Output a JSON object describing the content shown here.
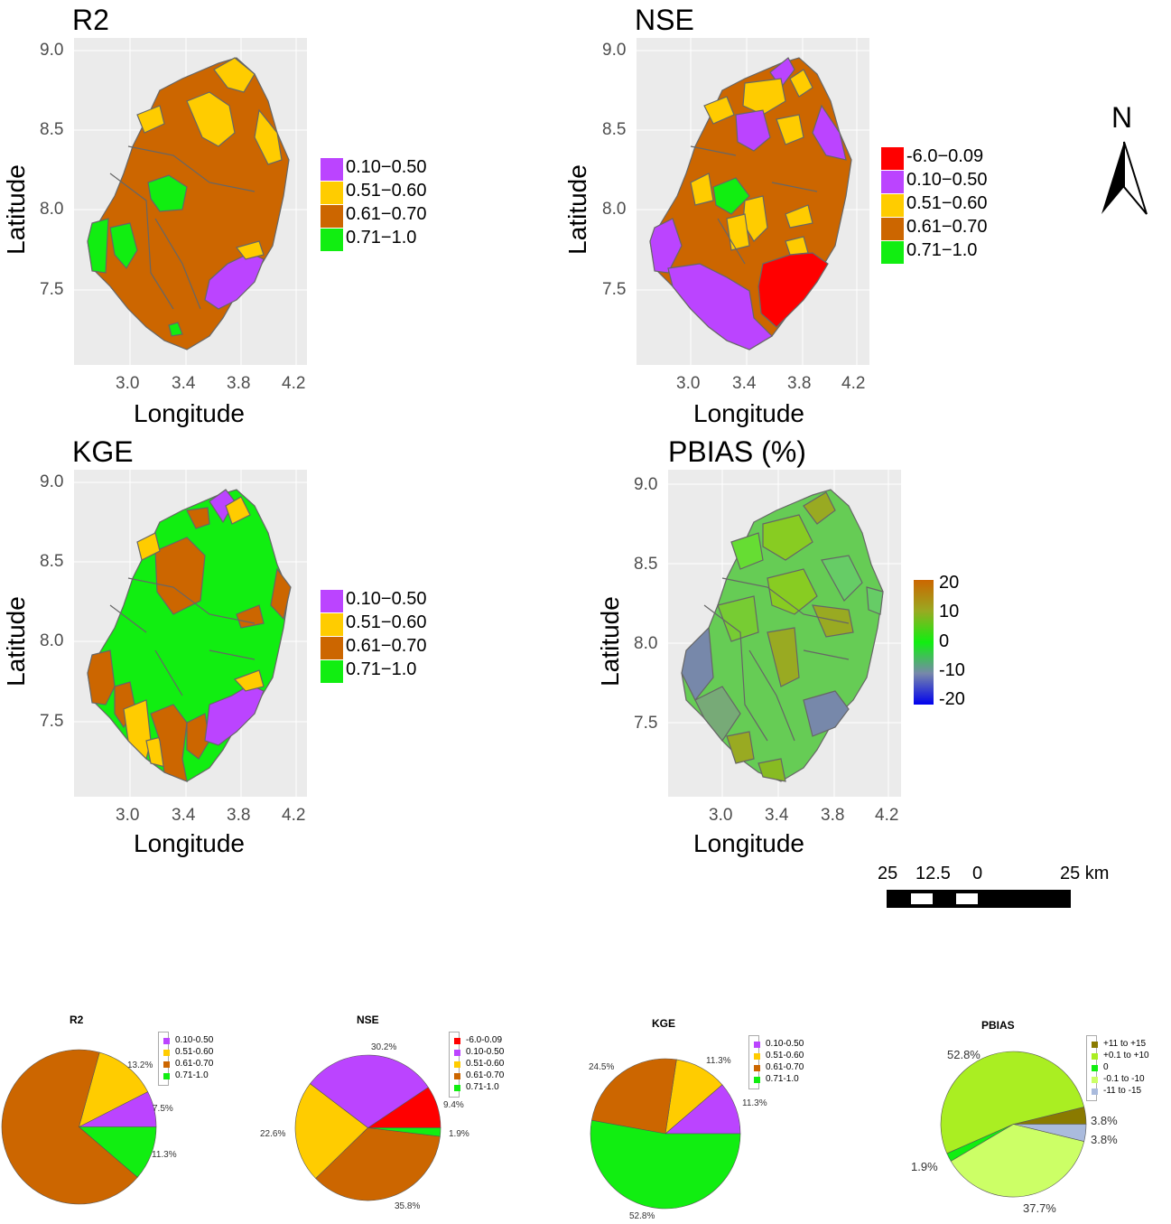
{
  "maps": [
    {
      "title": "R2",
      "ylabel": "Latitude",
      "xlabel": "Longitude",
      "yticks": [
        "9.0",
        "8.5",
        "8.0",
        "7.5"
      ],
      "xticks": [
        "3.0",
        "3.4",
        "3.8",
        "4.2"
      ],
      "legend": [
        {
          "label": "0.10−0.50",
          "color": "#BB44FF"
        },
        {
          "label": "0.51−0.60",
          "color": "#FFCC00"
        },
        {
          "label": "0.61−0.70",
          "color": "#CC6600"
        },
        {
          "label": "0.71−1.0",
          "color": "#11EE11"
        }
      ]
    },
    {
      "title": "NSE",
      "ylabel": "Latitude",
      "xlabel": "Longitude",
      "yticks": [
        "9.0",
        "8.5",
        "8.0",
        "7.5"
      ],
      "xticks": [
        "3.0",
        "3.4",
        "3.8",
        "4.2"
      ],
      "legend": [
        {
          "label": "-6.0−0.09",
          "color": "#FF0000"
        },
        {
          "label": "0.10−0.50",
          "color": "#BB44FF"
        },
        {
          "label": "0.51−0.60",
          "color": "#FFCC00"
        },
        {
          "label": "0.61−0.70",
          "color": "#CC6600"
        },
        {
          "label": "0.71−1.0",
          "color": "#11EE11"
        }
      ]
    },
    {
      "title": "KGE",
      "ylabel": "Latitude",
      "xlabel": "Longitude",
      "yticks": [
        "9.0",
        "8.5",
        "8.0",
        "7.5"
      ],
      "xticks": [
        "3.0",
        "3.4",
        "3.8",
        "4.2"
      ],
      "legend": [
        {
          "label": "0.10−0.50",
          "color": "#BB44FF"
        },
        {
          "label": "0.51−0.60",
          "color": "#FFCC00"
        },
        {
          "label": "0.61−0.70",
          "color": "#CC6600"
        },
        {
          "label": "0.71−1.0",
          "color": "#11EE11"
        }
      ]
    },
    {
      "title": "PBIAS (%)",
      "ylabel": "Latitude",
      "xlabel": "Longitude",
      "yticks": [
        "9.0",
        "8.5",
        "8.0",
        "7.5"
      ],
      "xticks": [
        "3.0",
        "3.4",
        "3.8",
        "4.2"
      ],
      "colorbar_labels": [
        "20",
        "10",
        "0",
        "-10",
        "-20"
      ]
    }
  ],
  "north_arrow": {
    "label": "N"
  },
  "scale_bar": {
    "labels": [
      "25",
      "12.5",
      "0",
      "25 km"
    ]
  },
  "chart_data": [
    {
      "type": "pie",
      "title": "R2",
      "legend_placement": "right",
      "categories": [
        "0.10-0.50",
        "0.51-0.60",
        "0.61-0.70",
        "0.71-1.0"
      ],
      "values": [
        7.5,
        13.2,
        67.9,
        11.3
      ],
      "colors": [
        "#BB44FF",
        "#FFCC00",
        "#CC6600",
        "#11EE11"
      ],
      "labels": [
        "7.5%",
        "13.2%",
        "",
        "11.3%"
      ]
    },
    {
      "type": "pie",
      "title": "NSE",
      "legend_placement": "right",
      "categories": [
        "-6.0-0.09",
        "0.10-0.50",
        "0.51-0.60",
        "0.61-0.70",
        "0.71-1.0"
      ],
      "values": [
        9.4,
        30.2,
        22.6,
        35.8,
        1.9
      ],
      "colors": [
        "#FF0000",
        "#BB44FF",
        "#FFCC00",
        "#CC6600",
        "#11EE11"
      ],
      "labels": [
        "9.4%",
        "30.2%",
        "22.6%",
        "35.8%",
        "1.9%"
      ]
    },
    {
      "type": "pie",
      "title": "KGE",
      "legend_placement": "right",
      "categories": [
        "0.10-0.50",
        "0.51-0.60",
        "0.61-0.70",
        "0.71-1.0"
      ],
      "values": [
        11.3,
        11.3,
        24.5,
        52.8
      ],
      "colors": [
        "#BB44FF",
        "#FFCC00",
        "#CC6600",
        "#11EE11"
      ],
      "labels": [
        "11.3%",
        "11.3%",
        "24.5%",
        "52.8%"
      ]
    },
    {
      "type": "pie",
      "title": "PBIAS",
      "legend_placement": "right",
      "categories": [
        "+11 to +15",
        "+0.1 to +10",
        "0",
        "-0.1 to -10",
        "-11 to -15"
      ],
      "values": [
        3.8,
        52.8,
        1.9,
        37.7,
        3.8
      ],
      "colors": [
        "#8A7A00",
        "#AAEE22",
        "#11EE11",
        "#CCFF66",
        "#AABBDD"
      ],
      "labels": [
        "3.8%",
        "52.8%",
        "1.9%",
        "37.7%",
        "3.8%"
      ]
    }
  ]
}
